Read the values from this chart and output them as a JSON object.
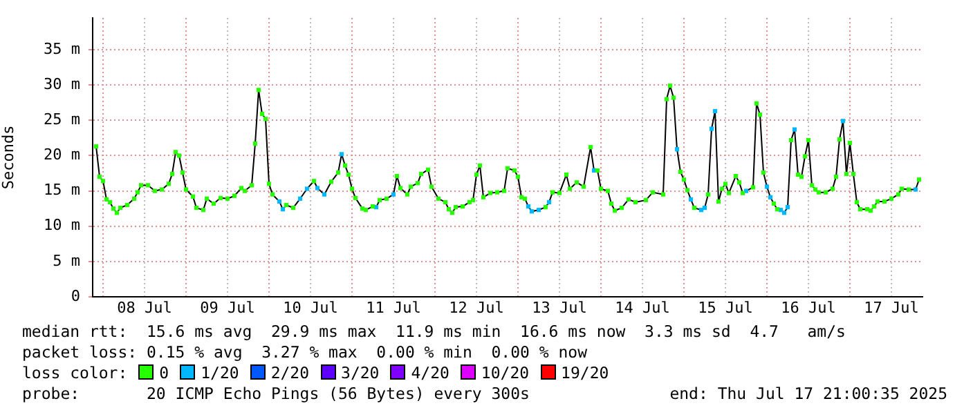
{
  "chart_data": {
    "type": "line",
    "ylabel": "Seconds",
    "legend": "bottom",
    "legend_title": "loss color:",
    "grid": true,
    "annotations": [
      "median rtt:  15.6 ms avg  29.9 ms max  11.9 ms min  16.6 ms now  3.3 ms sd  4.7   am/s",
      "packet loss: 0.15 % avg  3.27 % max  0.00 % min  0.00 % now",
      "probe:       20 ICMP Echo Pings (56 Bytes) every 300s",
      "end: Thu Jul 17 21:00:35 2025"
    ],
    "xlim": [
      "2025-07-07T21:00",
      "2025-07-17T21:00"
    ],
    "xticks": [
      {
        "value": "2025-07-08T00:00",
        "label": null
      },
      {
        "value": "2025-07-08T12:00",
        "label": "08 Jul"
      },
      {
        "value": "2025-07-09T00:00",
        "label": null
      },
      {
        "value": "2025-07-09T12:00",
        "label": "09 Jul"
      },
      {
        "value": "2025-07-10T00:00",
        "label": null
      },
      {
        "value": "2025-07-10T12:00",
        "label": "10 Jul"
      },
      {
        "value": "2025-07-11T00:00",
        "label": null
      },
      {
        "value": "2025-07-11T12:00",
        "label": "11 Jul"
      },
      {
        "value": "2025-07-12T00:00",
        "label": null
      },
      {
        "value": "2025-07-12T12:00",
        "label": "12 Jul"
      },
      {
        "value": "2025-07-13T00:00",
        "label": null
      },
      {
        "value": "2025-07-13T12:00",
        "label": "13 Jul"
      },
      {
        "value": "2025-07-14T00:00",
        "label": null
      },
      {
        "value": "2025-07-14T12:00",
        "label": "14 Jul"
      },
      {
        "value": "2025-07-15T00:00",
        "label": null
      },
      {
        "value": "2025-07-15T12:00",
        "label": "15 Jul"
      },
      {
        "value": "2025-07-16T00:00",
        "label": null
      },
      {
        "value": "2025-07-16T12:00",
        "label": "16 Jul"
      },
      {
        "value": "2025-07-17T00:00",
        "label": null
      },
      {
        "value": "2025-07-17T12:00",
        "label": "17 Jul"
      }
    ],
    "ylim": [
      0,
      39.5
    ],
    "yticks": [
      0,
      {
        "value": 5,
        "label": "5 m"
      },
      {
        "value": 10,
        "label": "10 m"
      },
      {
        "value": 15,
        "label": "15 m"
      },
      {
        "value": 20,
        "label": "20 m"
      },
      {
        "value": 25,
        "label": "25 m"
      },
      {
        "value": 30,
        "label": "30 m"
      },
      {
        "value": 35,
        "label": "35 m"
      }
    ],
    "x": [
      "2025-07-07T22:00",
      "2025-07-07T23:00",
      "2025-07-08T00:00",
      "2025-07-08T01:00",
      "2025-07-08T02:00",
      "2025-07-08T03:00",
      "2025-07-08T04:00",
      "2025-07-08T05:00",
      "2025-07-08T07:00",
      "2025-07-08T09:00",
      "2025-07-08T10:00",
      "2025-07-08T11:00",
      "2025-07-08T13:00",
      "2025-07-08T15:00",
      "2025-07-08T17:00",
      "2025-07-08T19:00",
      "2025-07-08T20:00",
      "2025-07-08T21:00",
      "2025-07-08T22:00",
      "2025-07-08T23:00",
      "2025-07-09T00:00",
      "2025-07-09T02:00",
      "2025-07-09T03:00",
      "2025-07-09T05:00",
      "2025-07-09T06:00",
      "2025-07-09T08:00",
      "2025-07-09T10:00",
      "2025-07-09T12:00",
      "2025-07-09T14:00",
      "2025-07-09T16:00",
      "2025-07-09T17:00",
      "2025-07-09T19:00",
      "2025-07-09T20:00",
      "2025-07-09T21:00",
      "2025-07-09T22:00",
      "2025-07-09T23:00",
      "2025-07-10T00:00",
      "2025-07-10T01:00",
      "2025-07-10T03:00",
      "2025-07-10T04:00",
      "2025-07-10T05:00",
      "2025-07-10T07:00",
      "2025-07-10T09:00",
      "2025-07-10T11:00",
      "2025-07-10T13:00",
      "2025-07-10T14:00",
      "2025-07-10T16:00",
      "2025-07-10T18:00",
      "2025-07-10T20:00",
      "2025-07-10T21:00",
      "2025-07-10T22:00",
      "2025-07-10T23:00",
      "2025-07-11T00:00",
      "2025-07-11T01:00",
      "2025-07-11T03:00",
      "2025-07-11T04:00",
      "2025-07-11T06:00",
      "2025-07-11T07:00",
      "2025-07-11T08:00",
      "2025-07-11T10:00",
      "2025-07-11T12:00",
      "2025-07-11T13:00",
      "2025-07-11T14:00",
      "2025-07-11T16:00",
      "2025-07-11T17:00",
      "2025-07-11T19:00",
      "2025-07-11T20:00",
      "2025-07-11T22:00",
      "2025-07-11T23:00",
      "2025-07-12T01:00",
      "2025-07-12T03:00",
      "2025-07-12T04:00",
      "2025-07-12T05:00",
      "2025-07-12T06:00",
      "2025-07-12T08:00",
      "2025-07-12T10:00",
      "2025-07-12T11:00",
      "2025-07-12T12:00",
      "2025-07-12T13:00",
      "2025-07-12T14:00",
      "2025-07-12T16:00",
      "2025-07-12T18:00",
      "2025-07-12T20:00",
      "2025-07-12T21:00",
      "2025-07-12T23:00",
      "2025-07-13T00:00",
      "2025-07-13T01:00",
      "2025-07-13T02:00",
      "2025-07-13T03:00",
      "2025-07-13T04:00",
      "2025-07-13T06:00",
      "2025-07-13T08:00",
      "2025-07-13T09:00",
      "2025-07-13T10:00",
      "2025-07-13T12:00",
      "2025-07-13T14:00",
      "2025-07-13T15:00",
      "2025-07-13T17:00",
      "2025-07-13T19:00",
      "2025-07-13T21:00",
      "2025-07-13T22:00",
      "2025-07-13T23:00",
      "2025-07-14T00:00",
      "2025-07-14T02:00",
      "2025-07-14T03:00",
      "2025-07-14T04:00",
      "2025-07-14T06:00",
      "2025-07-14T08:00",
      "2025-07-14T10:00",
      "2025-07-14T13:00",
      "2025-07-14T15:00",
      "2025-07-14T18:00",
      "2025-07-14T19:00",
      "2025-07-14T20:00",
      "2025-07-14T21:00",
      "2025-07-14T22:00",
      "2025-07-14T23:00",
      "2025-07-15T00:00",
      "2025-07-15T01:00",
      "2025-07-15T02:00",
      "2025-07-15T03:00",
      "2025-07-15T05:00",
      "2025-07-15T06:00",
      "2025-07-15T07:00",
      "2025-07-15T08:00",
      "2025-07-15T09:00",
      "2025-07-15T10:00",
      "2025-07-15T11:00",
      "2025-07-15T12:00",
      "2025-07-15T13:00",
      "2025-07-15T15:00",
      "2025-07-15T16:00",
      "2025-07-15T17:00",
      "2025-07-15T18:00",
      "2025-07-15T20:00",
      "2025-07-15T21:00",
      "2025-07-15T22:00",
      "2025-07-15T23:00",
      "2025-07-16T00:00",
      "2025-07-16T01:00",
      "2025-07-16T02:00",
      "2025-07-16T03:00",
      "2025-07-16T04:00",
      "2025-07-16T05:00",
      "2025-07-16T06:00",
      "2025-07-16T07:00",
      "2025-07-16T08:00",
      "2025-07-16T09:00",
      "2025-07-16T10:00",
      "2025-07-16T11:00",
      "2025-07-16T12:00",
      "2025-07-16T13:00",
      "2025-07-16T14:00",
      "2025-07-16T15:00",
      "2025-07-16T17:00",
      "2025-07-16T19:00",
      "2025-07-16T20:00",
      "2025-07-16T21:00",
      "2025-07-16T22:00",
      "2025-07-16T23:00",
      "2025-07-17T00:00",
      "2025-07-17T01:00",
      "2025-07-17T02:00",
      "2025-07-17T03:00",
      "2025-07-17T05:00",
      "2025-07-17T06:00",
      "2025-07-17T07:00",
      "2025-07-17T08:00",
      "2025-07-17T10:00",
      "2025-07-17T12:00",
      "2025-07-17T14:00",
      "2025-07-17T15:00",
      "2025-07-17T17:00",
      "2025-07-17T19:00",
      "2025-07-17T20:00"
    ],
    "series": [
      {
        "color": "#000000",
        "marker": "none",
        "values": [
          21.3,
          17.0,
          16.4,
          13.8,
          13.4,
          12.5,
          11.9,
          12.6,
          13.0,
          13.9,
          14.8,
          15.8,
          15.8,
          15.0,
          15.2,
          16.0,
          17.4,
          20.5,
          20.0,
          17.6,
          15.2,
          14.2,
          12.6,
          12.3,
          13.9,
          13.2,
          14.0,
          13.9,
          14.3,
          15.4,
          15.0,
          15.8,
          21.7,
          29.3,
          25.9,
          25.2,
          16.0,
          14.5,
          13.5,
          12.4,
          13.0,
          12.6,
          13.9,
          15.3,
          16.4,
          15.4,
          14.5,
          16.3,
          17.6,
          20.2,
          18.6,
          17.3,
          15.3,
          14.0,
          12.5,
          12.3,
          12.8,
          12.7,
          13.7,
          13.9,
          14.5,
          17.1,
          15.4,
          14.5,
          15.6,
          16.1,
          17.4,
          18.0,
          15.6,
          13.9,
          13.4,
          12.4,
          11.9,
          12.7,
          12.8,
          13.4,
          13.7,
          17.3,
          18.6,
          14.1,
          14.7,
          14.8,
          15.0,
          18.2,
          17.9,
          17.0,
          14.1,
          13.9,
          12.8,
          12.1,
          12.3,
          12.7,
          13.4,
          14.8,
          14.7,
          17.3,
          15.3,
          16.2,
          15.6,
          21.2,
          17.9,
          17.9,
          15.3,
          15.0,
          13.2,
          12.2,
          12.6,
          13.8,
          13.4,
          13.7,
          14.8,
          14.5,
          28.0,
          29.9,
          28.2,
          20.9,
          17.7,
          16.6,
          15.1,
          13.8,
          12.6,
          12.3,
          12.6,
          14.5,
          23.8,
          26.3,
          13.5,
          15.3,
          16.0,
          14.7,
          17.1,
          16.2,
          14.7,
          15.0,
          15.5,
          27.4,
          25.8,
          17.6,
          15.6,
          14.1,
          13.2,
          12.4,
          12.3,
          11.9,
          12.7,
          22.2,
          23.7,
          17.3,
          17.0,
          19.9,
          22.2,
          15.8,
          15.2,
          14.8,
          14.8,
          15.3,
          17.0,
          22.3,
          24.9,
          17.4,
          21.8,
          17.4,
          13.4,
          12.4,
          12.4,
          12.2,
          12.8,
          13.5,
          13.5,
          13.9,
          14.5,
          15.3,
          15.2,
          15.2,
          16.6
        ]
      },
      {
        "type": "scatter",
        "name": "0",
        "color": "#26ff00",
        "marker": "square",
        "values": [
          21.3,
          17.0,
          16.4,
          13.8,
          13.4,
          12.5,
          11.9,
          12.6,
          13.0,
          13.9,
          14.8,
          15.8,
          15.8,
          15.0,
          15.2,
          16.0,
          17.4,
          20.5,
          20.0,
          17.6,
          15.2,
          14.2,
          12.6,
          12.3,
          13.9,
          13.2,
          14.0,
          13.9,
          14.3,
          15.4,
          15.0,
          15.8,
          21.7,
          29.3,
          25.9,
          25.2,
          16.0,
          14.5,
          null,
          null,
          13.0,
          12.6,
          null,
          null,
          16.4,
          null,
          null,
          16.3,
          17.6,
          null,
          18.6,
          17.3,
          15.3,
          14.0,
          12.5,
          12.3,
          12.8,
          null,
          13.7,
          13.9,
          null,
          17.1,
          15.4,
          14.5,
          15.6,
          16.1,
          17.4,
          18.0,
          15.6,
          13.9,
          13.4,
          12.4,
          11.9,
          12.7,
          12.8,
          13.4,
          13.7,
          17.3,
          18.6,
          14.1,
          14.7,
          14.8,
          15.0,
          18.2,
          17.9,
          17.0,
          14.1,
          13.9,
          null,
          null,
          null,
          12.7,
          null,
          14.8,
          14.7,
          17.3,
          15.3,
          16.2,
          15.6,
          21.2,
          null,
          17.9,
          15.3,
          15.0,
          13.2,
          12.2,
          12.6,
          13.8,
          13.4,
          13.7,
          14.8,
          14.5,
          28.0,
          29.9,
          28.2,
          null,
          17.7,
          16.6,
          15.1,
          null,
          12.6,
          null,
          null,
          14.5,
          null,
          null,
          13.5,
          15.3,
          16.0,
          14.7,
          17.1,
          16.2,
          14.7,
          null,
          15.5,
          27.4,
          25.8,
          17.6,
          null,
          null,
          13.2,
          12.4,
          null,
          null,
          null,
          22.2,
          null,
          17.3,
          17.0,
          19.9,
          22.2,
          15.8,
          15.2,
          14.8,
          14.8,
          15.3,
          17.0,
          22.3,
          null,
          17.4,
          21.8,
          17.4,
          13.4,
          12.4,
          12.4,
          12.2,
          12.8,
          13.5,
          13.5,
          13.9,
          14.5,
          15.3,
          15.2,
          null,
          16.6
        ]
      },
      {
        "type": "scatter",
        "name": "1/20",
        "color": "#00b8ff",
        "marker": "square",
        "x": [
          "2025-07-10T03:00",
          "2025-07-10T04:00",
          "2025-07-10T09:00",
          "2025-07-10T11:00",
          "2025-07-10T14:00",
          "2025-07-10T16:00",
          "2025-07-10T21:00",
          "2025-07-11T07:00",
          "2025-07-11T12:00",
          "2025-07-13T03:00",
          "2025-07-13T04:00",
          "2025-07-13T06:00",
          "2025-07-13T09:00",
          "2025-07-13T22:00",
          "2025-07-14T22:00",
          "2025-07-15T02:00",
          "2025-07-15T05:00",
          "2025-07-15T06:00",
          "2025-07-15T08:00",
          "2025-07-15T09:00",
          "2025-07-15T18:00",
          "2025-07-16T00:00",
          "2025-07-16T01:00",
          "2025-07-16T04:00",
          "2025-07-16T05:00",
          "2025-07-16T06:00",
          "2025-07-16T08:00",
          "2025-07-16T22:00",
          "2025-07-17T19:00"
        ],
        "values": [
          13.5,
          12.4,
          13.9,
          15.3,
          15.4,
          14.5,
          20.2,
          12.7,
          14.5,
          12.8,
          12.1,
          12.3,
          13.4,
          17.9,
          20.9,
          13.8,
          12.3,
          12.6,
          23.8,
          26.3,
          15.0,
          15.6,
          14.1,
          12.3,
          11.9,
          12.7,
          23.7,
          24.9,
          15.2
        ]
      },
      {
        "type": "scatter",
        "name": "2/20",
        "color": "#0059ff",
        "marker": "square",
        "values": [
          null,
          null,
          null,
          null,
          null,
          null,
          null,
          null,
          null,
          null,
          null,
          null,
          null,
          null,
          null,
          null,
          null,
          null,
          null,
          null,
          null,
          null,
          null,
          null,
          null,
          null,
          null,
          null,
          null,
          null,
          null,
          null,
          null,
          null,
          null,
          null,
          null,
          null,
          null,
          null,
          null,
          null,
          null,
          null,
          null,
          null,
          null,
          null,
          null,
          null,
          null,
          null,
          null,
          null,
          null,
          null,
          null,
          null,
          null,
          null,
          null,
          null,
          null,
          null,
          null,
          null,
          null,
          null,
          null,
          null,
          null,
          null,
          null,
          null,
          null,
          null,
          null,
          null,
          null,
          null,
          null,
          null,
          null,
          null,
          null,
          null,
          null,
          null,
          null,
          null,
          null,
          null,
          null,
          null,
          null,
          null,
          null,
          null,
          null,
          null,
          null,
          null,
          null,
          null,
          null,
          null,
          null,
          null,
          null,
          null,
          null,
          null,
          null,
          null,
          null,
          null,
          null,
          null,
          null,
          null,
          null,
          null,
          null,
          null,
          null,
          null,
          null,
          null,
          null,
          null,
          null,
          null,
          null,
          null,
          null,
          null,
          null,
          null,
          null,
          null,
          null,
          null,
          null,
          null,
          null,
          null,
          null,
          null,
          null,
          null,
          null,
          null,
          null,
          null,
          null,
          null,
          null,
          null,
          null,
          null,
          null,
          null,
          null,
          null,
          null,
          null,
          null,
          null,
          null,
          null,
          null,
          null,
          null,
          null,
          null
        ]
      },
      {
        "type": "scatter",
        "name": "3/20",
        "color": "#5e00ff",
        "marker": "square",
        "values": [
          null,
          null,
          null,
          null,
          null,
          null,
          null,
          null,
          null,
          null,
          null,
          null,
          null,
          null,
          null,
          null,
          null,
          null,
          null,
          null,
          null,
          null,
          null,
          null,
          null,
          null,
          null,
          null,
          null,
          null,
          null,
          null,
          null,
          null,
          null,
          null,
          null,
          null,
          null,
          null,
          null,
          null,
          null,
          null,
          null,
          null,
          null,
          null,
          null,
          null,
          null,
          null,
          null,
          null,
          null,
          null,
          null,
          null,
          null,
          null,
          null,
          null,
          null,
          null,
          null,
          null,
          null,
          null,
          null,
          null,
          null,
          null,
          null,
          null,
          null,
          null,
          null,
          null,
          null,
          null,
          null,
          null,
          null,
          null,
          null,
          null,
          null,
          null,
          null,
          null,
          null,
          null,
          null,
          null,
          null,
          null,
          null,
          null,
          null,
          null,
          null,
          null,
          null,
          null,
          null,
          null,
          null,
          null,
          null,
          null,
          null,
          null,
          null,
          null,
          null,
          null,
          null,
          null,
          null,
          null,
          null,
          null,
          null,
          null,
          null,
          null,
          null,
          null,
          null,
          null,
          null,
          null,
          null,
          null,
          null,
          null,
          null,
          null,
          null,
          null,
          null,
          null,
          null,
          null,
          null,
          null,
          null,
          null,
          null,
          null,
          null,
          null,
          null,
          null,
          null,
          null,
          null,
          null,
          null,
          null,
          null,
          null,
          null,
          null,
          null,
          null,
          null,
          null,
          null,
          null,
          null,
          null,
          null,
          null,
          null
        ]
      },
      {
        "type": "scatter",
        "name": "4/20",
        "color": "#7e00ff",
        "marker": "square",
        "values": [
          null,
          null,
          null,
          null,
          null,
          null,
          null,
          null,
          null,
          null,
          null,
          null,
          null,
          null,
          null,
          null,
          null,
          null,
          null,
          null,
          null,
          null,
          null,
          null,
          null,
          null,
          null,
          null,
          null,
          null,
          null,
          null,
          null,
          null,
          null,
          null,
          null,
          null,
          null,
          null,
          null,
          null,
          null,
          null,
          null,
          null,
          null,
          null,
          null,
          null,
          null,
          null,
          null,
          null,
          null,
          null,
          null,
          null,
          null,
          null,
          null,
          null,
          null,
          null,
          null,
          null,
          null,
          null,
          null,
          null,
          null,
          null,
          null,
          null,
          null,
          null,
          null,
          null,
          null,
          null,
          null,
          null,
          null,
          null,
          null,
          null,
          null,
          null,
          null,
          null,
          null,
          null,
          null,
          null,
          null,
          null,
          null,
          null,
          null,
          null,
          null,
          null,
          null,
          null,
          null,
          null,
          null,
          null,
          null,
          null,
          null,
          null,
          null,
          null,
          null,
          null,
          null,
          null,
          null,
          null,
          null,
          null,
          null,
          null,
          null,
          null,
          null,
          null,
          null,
          null,
          null,
          null,
          null,
          null,
          null,
          null,
          null,
          null,
          null,
          null,
          null,
          null,
          null,
          null,
          null,
          null,
          null,
          null,
          null,
          null,
          null,
          null,
          null,
          null,
          null,
          null,
          null,
          null,
          null,
          null,
          null,
          null,
          null,
          null,
          null,
          null,
          null,
          null,
          null,
          null,
          null,
          null,
          null,
          null,
          null
        ]
      },
      {
        "type": "scatter",
        "name": "10/20",
        "color": "#dd00ff",
        "marker": "square",
        "values": [
          null,
          null,
          null,
          null,
          null,
          null,
          null,
          null,
          null,
          null,
          null,
          null,
          null,
          null,
          null,
          null,
          null,
          null,
          null,
          null,
          null,
          null,
          null,
          null,
          null,
          null,
          null,
          null,
          null,
          null,
          null,
          null,
          null,
          null,
          null,
          null,
          null,
          null,
          null,
          null,
          null,
          null,
          null,
          null,
          null,
          null,
          null,
          null,
          null,
          null,
          null,
          null,
          null,
          null,
          null,
          null,
          null,
          null,
          null,
          null,
          null,
          null,
          null,
          null,
          null,
          null,
          null,
          null,
          null,
          null,
          null,
          null,
          null,
          null,
          null,
          null,
          null,
          null,
          null,
          null,
          null,
          null,
          null,
          null,
          null,
          null,
          null,
          null,
          null,
          null,
          null,
          null,
          null,
          null,
          null,
          null,
          null,
          null,
          null,
          null,
          null,
          null,
          null,
          null,
          null,
          null,
          null,
          null,
          null,
          null,
          null,
          null,
          null,
          null,
          null,
          null,
          null,
          null,
          null,
          null,
          null,
          null,
          null,
          null,
          null,
          null,
          null,
          null,
          null,
          null,
          null,
          null,
          null,
          null,
          null,
          null,
          null,
          null,
          null,
          null,
          null,
          null,
          null,
          null,
          null,
          null,
          null,
          null,
          null,
          null,
          null,
          null,
          null,
          null,
          null,
          null,
          null,
          null,
          null,
          null,
          null,
          null,
          null,
          null,
          null,
          null,
          null,
          null,
          null,
          null,
          null,
          null,
          null,
          null,
          null
        ]
      },
      {
        "type": "scatter",
        "name": "19/20",
        "color": "#ff0000",
        "marker": "square",
        "values": [
          null,
          null,
          null,
          null,
          null,
          null,
          null,
          null,
          null,
          null,
          null,
          null,
          null,
          null,
          null,
          null,
          null,
          null,
          null,
          null,
          null,
          null,
          null,
          null,
          null,
          null,
          null,
          null,
          null,
          null,
          null,
          null,
          null,
          null,
          null,
          null,
          null,
          null,
          null,
          null,
          null,
          null,
          null,
          null,
          null,
          null,
          null,
          null,
          null,
          null,
          null,
          null,
          null,
          null,
          null,
          null,
          null,
          null,
          null,
          null,
          null,
          null,
          null,
          null,
          null,
          null,
          null,
          null,
          null,
          null,
          null,
          null,
          null,
          null,
          null,
          null,
          null,
          null,
          null,
          null,
          null,
          null,
          null,
          null,
          null,
          null,
          null,
          null,
          null,
          null,
          null,
          null,
          null,
          null,
          null,
          null,
          null,
          null,
          null,
          null,
          null,
          null,
          null,
          null,
          null,
          null,
          null,
          null,
          null,
          null,
          null,
          null,
          null,
          null,
          null,
          null,
          null,
          null,
          null,
          null,
          null,
          null,
          null,
          null,
          null,
          null,
          null,
          null,
          null,
          null,
          null,
          null,
          null,
          null,
          null,
          null,
          null,
          null,
          null,
          null,
          null,
          null,
          null,
          null,
          null,
          null,
          null,
          null,
          null,
          null,
          null,
          null,
          null,
          null,
          null,
          null,
          null,
          null,
          null,
          null,
          null,
          null,
          null,
          null,
          null,
          null,
          null,
          null,
          null,
          null,
          null,
          null,
          null,
          null,
          null
        ]
      }
    ]
  }
}
